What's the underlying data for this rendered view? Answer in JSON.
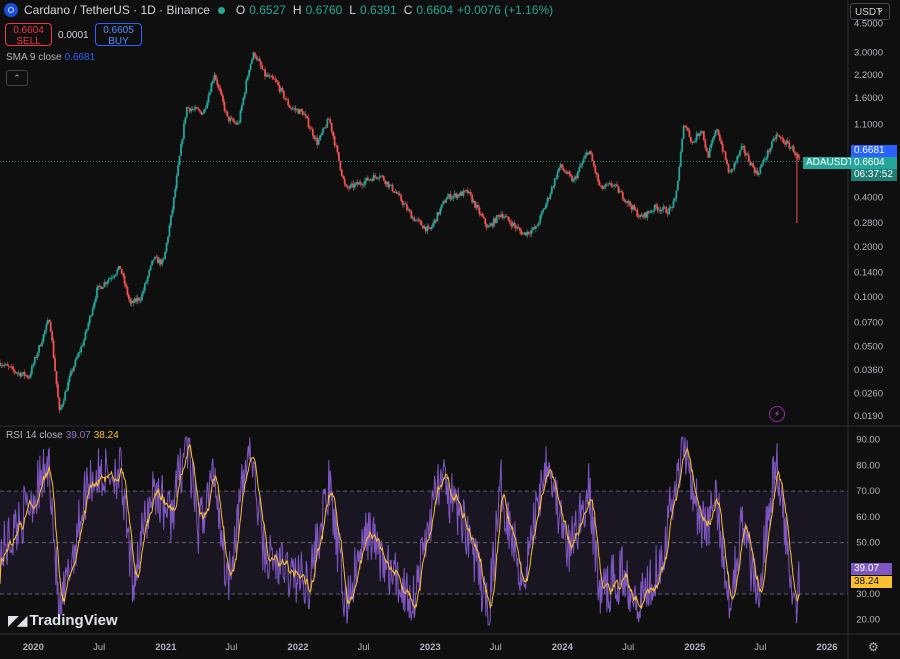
{
  "header": {
    "symbol": "Cardano / TetherUS · 1D · Binance",
    "o_label": "O",
    "o": "0.6527",
    "h_label": "H",
    "h": "0.6760",
    "l_label": "L",
    "l": "0.6391",
    "c_label": "C",
    "c": "0.6604",
    "change": "+0.0076 (+1.16%)"
  },
  "trade": {
    "sell_price": "0.6604",
    "sell_label": "SELL",
    "spread": "0.0001",
    "buy_price": "0.6605",
    "buy_label": "BUY"
  },
  "sma": {
    "label": "SMA 9 close",
    "value": "0.6681"
  },
  "rsi": {
    "label": "RSI 14 close",
    "value": "39.07",
    "ma_value": "38.24"
  },
  "currency": "USDT",
  "badges": {
    "sma": "0.6681",
    "symbol": "ADAUSDT",
    "price": "0.6604",
    "countdown": "06:37:52",
    "rsi": "39.07",
    "rsi_ma": "38.24"
  },
  "brand": "TradingView",
  "colors": {
    "up": "#26a69a",
    "down": "#ef5350",
    "sma": "#2962ff",
    "rsi": "#7e57c2",
    "rsi_ma": "#fbc02d"
  },
  "chart_data": [
    {
      "type": "candlestick",
      "scale": "log",
      "x_ticks": [
        "2020",
        "Jul",
        "2021",
        "Jul",
        "2022",
        "Jul",
        "2023",
        "Jul",
        "2024",
        "Jul",
        "2025",
        "Jul",
        "2026"
      ],
      "y_ticks": [
        "4.5000",
        "3.0000",
        "2.2000",
        "1.6000",
        "1.1000",
        "0.6681",
        "0.4000",
        "0.2800",
        "0.2000",
        "0.1400",
        "0.1000",
        "0.0700",
        "0.0500",
        "0.0360",
        "0.0260",
        "0.0190"
      ],
      "ylim": [
        0.0175,
        4.6
      ],
      "price_path": [
        [
          "2019-10-01",
          0.04
        ],
        [
          "2019-11-15",
          0.035
        ],
        [
          "2019-12-20",
          0.033
        ],
        [
          "2020-02-15",
          0.075
        ],
        [
          "2020-03-13",
          0.02
        ],
        [
          "2020-04-15",
          0.035
        ],
        [
          "2020-05-20",
          0.055
        ],
        [
          "2020-06-25",
          0.11
        ],
        [
          "2020-08-28",
          0.15
        ],
        [
          "2020-09-25",
          0.09
        ],
        [
          "2020-10-25",
          0.1
        ],
        [
          "2020-11-28",
          0.17
        ],
        [
          "2020-12-25",
          0.16
        ],
        [
          "2021-01-20",
          0.35
        ],
        [
          "2021-02-27",
          1.4
        ],
        [
          "2021-04-15",
          1.3
        ],
        [
          "2021-05-15",
          2.25
        ],
        [
          "2021-06-20",
          1.2
        ],
        [
          "2021-07-20",
          1.1
        ],
        [
          "2021-08-20",
          2.5
        ],
        [
          "2021-09-02",
          3.0
        ],
        [
          "2021-10-01",
          2.2
        ],
        [
          "2021-11-01",
          2.0
        ],
        [
          "2021-12-10",
          1.4
        ],
        [
          "2022-01-15",
          1.3
        ],
        [
          "2022-02-24",
          0.85
        ],
        [
          "2022-03-28",
          1.2
        ],
        [
          "2022-05-12",
          0.45
        ],
        [
          "2022-06-15",
          0.48
        ],
        [
          "2022-08-14",
          0.55
        ],
        [
          "2022-10-01",
          0.42
        ],
        [
          "2022-11-15",
          0.3
        ],
        [
          "2022-12-30",
          0.25
        ],
        [
          "2023-02-15",
          0.4
        ],
        [
          "2023-04-15",
          0.43
        ],
        [
          "2023-06-10",
          0.26
        ],
        [
          "2023-07-15",
          0.32
        ],
        [
          "2023-09-15",
          0.24
        ],
        [
          "2023-10-20",
          0.26
        ],
        [
          "2023-11-20",
          0.38
        ],
        [
          "2023-12-25",
          0.62
        ],
        [
          "2024-02-01",
          0.5
        ],
        [
          "2024-03-14",
          0.78
        ],
        [
          "2024-04-15",
          0.45
        ],
        [
          "2024-05-20",
          0.48
        ],
        [
          "2024-08-05",
          0.3
        ],
        [
          "2024-09-15",
          0.35
        ],
        [
          "2024-10-20",
          0.33
        ],
        [
          "2024-11-08",
          0.38
        ],
        [
          "2024-12-03",
          1.15
        ],
        [
          "2024-12-25",
          0.85
        ],
        [
          "2025-01-20",
          1.05
        ],
        [
          "2025-02-05",
          0.7
        ],
        [
          "2025-03-03",
          1.05
        ],
        [
          "2025-04-07",
          0.55
        ],
        [
          "2025-05-12",
          0.8
        ],
        [
          "2025-06-22",
          0.55
        ],
        [
          "2025-08-14",
          0.95
        ],
        [
          "2025-09-10",
          0.85
        ],
        [
          "2025-09-30",
          0.78
        ],
        [
          "2025-10-10",
          0.7
        ],
        [
          "2025-10-18",
          0.6604
        ]
      ]
    },
    {
      "type": "line",
      "name": "RSI 14 close",
      "y_ticks": [
        "90.00",
        "80.00",
        "70.00",
        "60.00",
        "50.00",
        "30.00",
        "20.00"
      ],
      "ylim": [
        16,
        93
      ],
      "bands": [
        70,
        50,
        30
      ],
      "rsi_path": [
        [
          "2019-10-01",
          45
        ],
        [
          "2019-12-01",
          60
        ],
        [
          "2020-02-15",
          80
        ],
        [
          "2020-03-13",
          20
        ],
        [
          "2020-06-01",
          75
        ],
        [
          "2020-08-28",
          78
        ],
        [
          "2020-10-01",
          35
        ],
        [
          "2020-11-28",
          72
        ],
        [
          "2021-01-15",
          60
        ],
        [
          "2021-02-27",
          90
        ],
        [
          "2021-04-01",
          55
        ],
        [
          "2021-05-15",
          78
        ],
        [
          "2021-06-20",
          35
        ],
        [
          "2021-08-20",
          88
        ],
        [
          "2021-10-01",
          45
        ],
        [
          "2021-12-10",
          38
        ],
        [
          "2022-02-01",
          35
        ],
        [
          "2022-03-28",
          72
        ],
        [
          "2022-05-12",
          25
        ],
        [
          "2022-07-15",
          55
        ],
        [
          "2022-09-01",
          40
        ],
        [
          "2022-11-15",
          28
        ],
        [
          "2023-01-25",
          75
        ],
        [
          "2023-04-15",
          55
        ],
        [
          "2023-06-10",
          22
        ],
        [
          "2023-07-15",
          72
        ],
        [
          "2023-09-15",
          35
        ],
        [
          "2023-11-20",
          85
        ],
        [
          "2024-01-15",
          45
        ],
        [
          "2024-03-14",
          70
        ],
        [
          "2024-04-15",
          30
        ],
        [
          "2024-06-15",
          38
        ],
        [
          "2024-08-05",
          28
        ],
        [
          "2024-10-01",
          45
        ],
        [
          "2024-12-03",
          90
        ],
        [
          "2025-01-20",
          55
        ],
        [
          "2025-03-03",
          65
        ],
        [
          "2025-04-07",
          28
        ],
        [
          "2025-05-12",
          58
        ],
        [
          "2025-06-22",
          30
        ],
        [
          "2025-08-14",
          82
        ],
        [
          "2025-09-15",
          45
        ],
        [
          "2025-10-10",
          28
        ],
        [
          "2025-10-18",
          39.07
        ]
      ]
    }
  ]
}
